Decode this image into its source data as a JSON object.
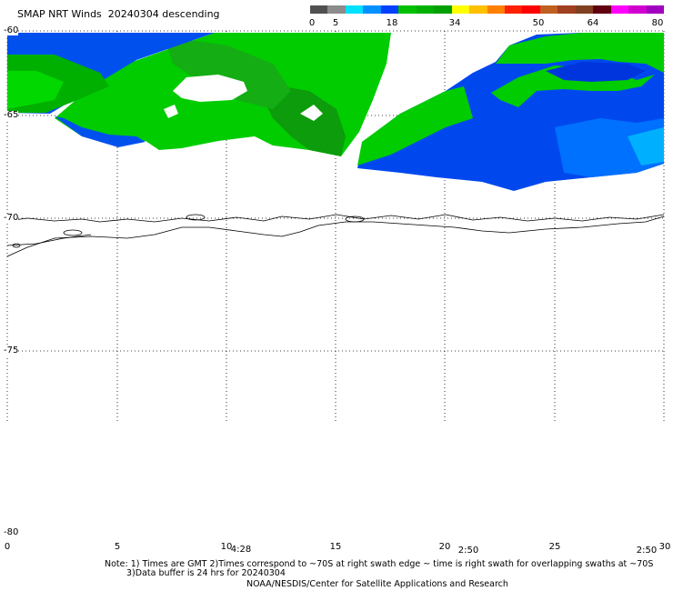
{
  "title": "SMAP NRT Winds  20240304 descending",
  "colorbar": {
    "unit_note": "",
    "labels": [
      "0",
      "5",
      "18",
      "34",
      "50",
      "64",
      "80"
    ],
    "segment_colors": [
      "#505050",
      "#8c8c8c",
      "#00e0ff",
      "#0090ff",
      "#0040ff",
      "#00c000",
      "#00b000",
      "#00a000",
      "#ffff00",
      "#ffc000",
      "#ff8000",
      "#ff2000",
      "#ff0000",
      "#c06020",
      "#a04020",
      "#804020",
      "#600010",
      "#ff00ff",
      "#d000d0",
      "#a000c0"
    ]
  },
  "map": {
    "lat_labels": [
      "-60",
      "-65",
      "-70",
      "-75",
      "-80"
    ],
    "lon_labels": [
      "0",
      "5",
      "10",
      "15",
      "20",
      "25",
      "30"
    ],
    "time_labels": [
      "4:28",
      "2:50",
      "2:50"
    ],
    "features": [
      "wind-swath-left",
      "wind-swath-right",
      "antarctic-coastline"
    ]
  },
  "notes": {
    "line1": "Note: 1) Times are GMT 2)Times correspond to ~70S at right swath edge ~ time is right swath for overlapping swaths at ~70S",
    "line2": "3)Data buffer is 24 hrs for 20240304",
    "credit": "NOAA/NESDIS/Center for Satellite Applications and Research"
  }
}
